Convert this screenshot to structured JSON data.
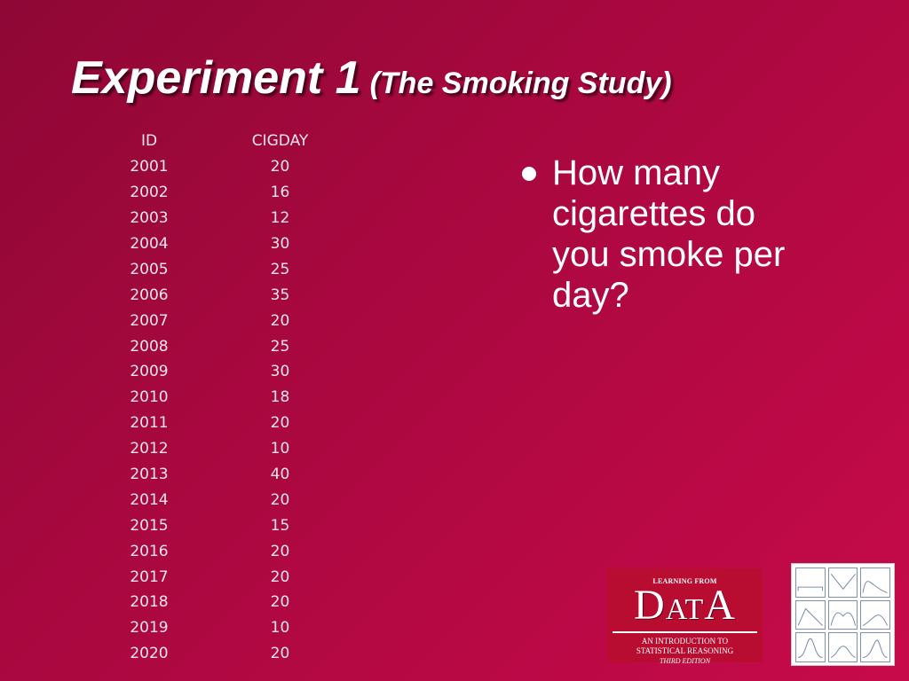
{
  "title": {
    "main": "Experiment 1",
    "sub": "(The Smoking Study)"
  },
  "table": {
    "headers": [
      "ID",
      "CIGDAY"
    ],
    "rows": [
      [
        "2001",
        "20"
      ],
      [
        "2002",
        "16"
      ],
      [
        "2003",
        "12"
      ],
      [
        "2004",
        "30"
      ],
      [
        "2005",
        "25"
      ],
      [
        "2006",
        "35"
      ],
      [
        "2007",
        "20"
      ],
      [
        "2008",
        "25"
      ],
      [
        "2009",
        "30"
      ],
      [
        "2010",
        "18"
      ],
      [
        "2011",
        "20"
      ],
      [
        "2012",
        "10"
      ],
      [
        "2013",
        "40"
      ],
      [
        "2014",
        "20"
      ],
      [
        "2015",
        "15"
      ],
      [
        "2016",
        "20"
      ],
      [
        "2017",
        "20"
      ],
      [
        "2018",
        "20"
      ],
      [
        "2019",
        "10"
      ],
      [
        "2020",
        "20"
      ]
    ]
  },
  "bullet": {
    "text": "How many cigarettes do you smoke per day?"
  },
  "book_logo": {
    "top_line": "LEARNING FROM",
    "word_d": "D",
    "word_at": "AT",
    "word_a": "A",
    "line1": "AN INTRODUCTION TO",
    "line2": "STATISTICAL REASONING",
    "line3": "THIRD EDITION"
  },
  "colors": {
    "background_start": "#8e0735",
    "background_end": "#c70a4a",
    "text": "#ffffff",
    "book_cover": "#b80c30"
  }
}
